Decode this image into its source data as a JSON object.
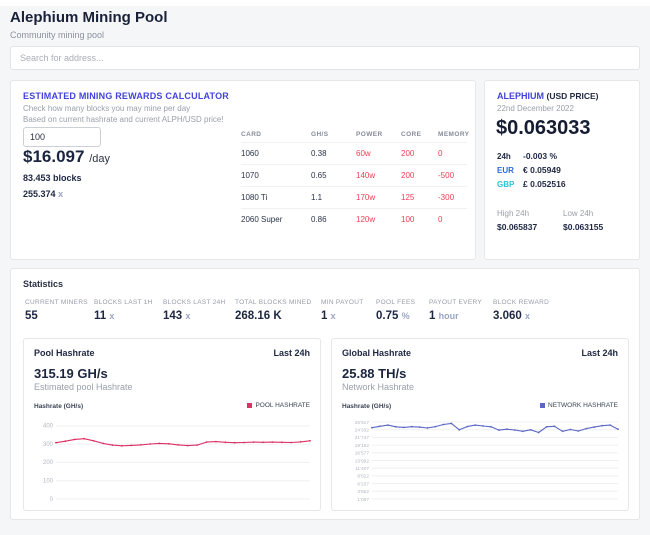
{
  "header": {
    "title": "Alephium Mining Pool",
    "subtitle": "Community mining pool"
  },
  "search": {
    "placeholder": "Search for address..."
  },
  "calculator": {
    "title": "ESTIMATED MINING REWARDS CALCULATOR",
    "line1": "Check how many blocks you may mine per day",
    "line2": "Based on current hashrate and current ALPH/USD price!",
    "hashrate_value": "100",
    "usd_per_day": "$16.097",
    "per_day_suffix": "/day",
    "blocks": "83.453 blocks",
    "alph_amount": "255.374",
    "alph_symbol": "x"
  },
  "gpu_table": {
    "columns": [
      "CARD",
      "GH/S",
      "POWER",
      "CORE",
      "MEMORY"
    ],
    "rows": [
      [
        "1060",
        "0.38",
        "60w",
        "200",
        "0"
      ],
      [
        "1070",
        "0.65",
        "140w",
        "200",
        "-500"
      ],
      [
        "1080 Ti",
        "1.1",
        "170w",
        "125",
        "-300"
      ],
      [
        "2060 Super",
        "0.86",
        "120w",
        "100",
        "0"
      ]
    ]
  },
  "price": {
    "coin": "ALEPHIUM",
    "unit": "(USD PRICE)",
    "date": "22nd December 2022",
    "usd": "$0.063033",
    "change_label": "24h",
    "change_value": "-0.003 %",
    "eur_label": "EUR",
    "eur_value": "€ 0.05949",
    "gbp_label": "GBP",
    "gbp_value": "£ 0.052516",
    "high_label": "High 24h",
    "high_value": "$0.065837",
    "low_label": "Low 24h",
    "low_value": "$0.063155"
  },
  "statistics": {
    "title": "Statistics",
    "items": [
      {
        "label": "CURRENT MINERS",
        "value": "55",
        "suffix": ""
      },
      {
        "label": "BLOCKS LAST 1H",
        "value": "11",
        "suffix": "x"
      },
      {
        "label": "BLOCKS LAST 24H",
        "value": "143",
        "suffix": "x"
      },
      {
        "label": "TOTAL BLOCKS MINED",
        "value": "268.16 K",
        "suffix": ""
      },
      {
        "label": "MIN PAYOUT",
        "value": "1",
        "suffix": "x"
      },
      {
        "label": "POOL FEES",
        "value": "0.75",
        "suffix": "%"
      },
      {
        "label": "PAYOUT EVERY",
        "value": "1",
        "suffix": "hour"
      },
      {
        "label": "BLOCK REWARD",
        "value": "3.060",
        "suffix": "x"
      }
    ]
  },
  "chart_data": [
    {
      "type": "line",
      "title": "Pool Hashrate",
      "period": "Last 24h",
      "headline": "315.19 GH/s",
      "subtitle": "Estimated pool Hashrate",
      "ylabel": "Hashrate (GH/s)",
      "legend": "POOL HASHRATE",
      "legend_position": "top-right",
      "color": "#dd3065",
      "grid": true,
      "x": "last 24 hours, hourly samples",
      "ylim": [
        0,
        432
      ],
      "yticks": [
        400,
        300,
        200,
        100,
        0
      ],
      "ytick_labels": [
        "400",
        "300",
        "200",
        "100",
        "0"
      ],
      "values": [
        308,
        316,
        326,
        330,
        318,
        304,
        295,
        291,
        293,
        296,
        301,
        304,
        302,
        296,
        292,
        295,
        311,
        314,
        310,
        308,
        309,
        311,
        310,
        311,
        310,
        309,
        312,
        318
      ]
    },
    {
      "type": "line",
      "title": "Global Hashrate",
      "period": "Last 24h",
      "headline": "25.88 TH/s",
      "subtitle": "Network Hashrate",
      "ylabel": "Hashrate (GH/s)",
      "legend": "NETWORK HASHRATE",
      "legend_position": "top-right",
      "color": "#5b66c4",
      "grid": true,
      "x": "last 24 hours, hourly samples",
      "ylim": [
        1067,
        27600
      ],
      "yticks": [
        26917,
        24332,
        21747,
        19162,
        16577,
        13992,
        11407,
        8822,
        6237,
        3652,
        1067
      ],
      "ytick_labels": [
        "26'917",
        "24'332",
        "21'747",
        "19'162",
        "16'577",
        "13'992",
        "11'407",
        "8'822",
        "6'237",
        "3'652",
        "1'067"
      ],
      "values": [
        25000,
        25500,
        25900,
        25300,
        25100,
        25350,
        25200,
        24900,
        25400,
        26100,
        26450,
        24300,
        25400,
        25900,
        25600,
        25300,
        24200,
        24500,
        24250,
        23800,
        24300,
        23400,
        25300,
        25500,
        23800,
        24400,
        23900,
        24700,
        25200,
        25700,
        25900,
        24500
      ]
    }
  ]
}
